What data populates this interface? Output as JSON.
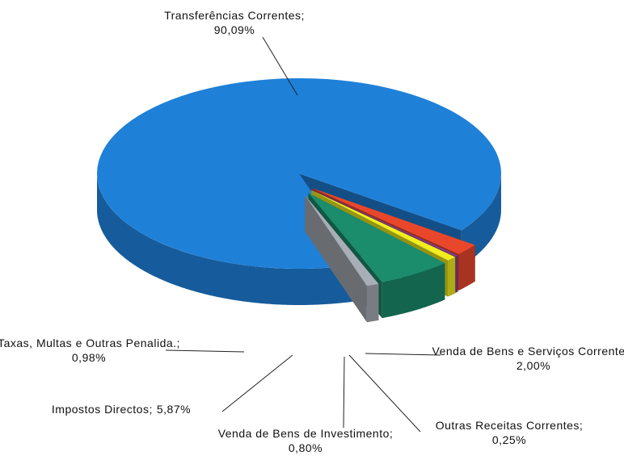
{
  "chart_data": {
    "type": "pie",
    "categories": [
      "Transferências Correntes;",
      "Venda de Bens e Serviços Correntes;",
      "Outras Receitas Correntes;",
      "Venda de Bens de Investimento;",
      "Impostos Directos;",
      "Taxas, Multas e Outras Penalida.;"
    ],
    "values": [
      90.09,
      2.0,
      0.25,
      0.8,
      5.87,
      0.98
    ],
    "value_labels": [
      "90,09%",
      "2,00%",
      "0,25%",
      "0,80%",
      "5,87%",
      "0,98%"
    ],
    "colors": [
      "#1f80d8",
      "#e8472c",
      "#8a3a8a",
      "#f2ee1e",
      "#1b8c6c",
      "#a8aeb6"
    ]
  }
}
